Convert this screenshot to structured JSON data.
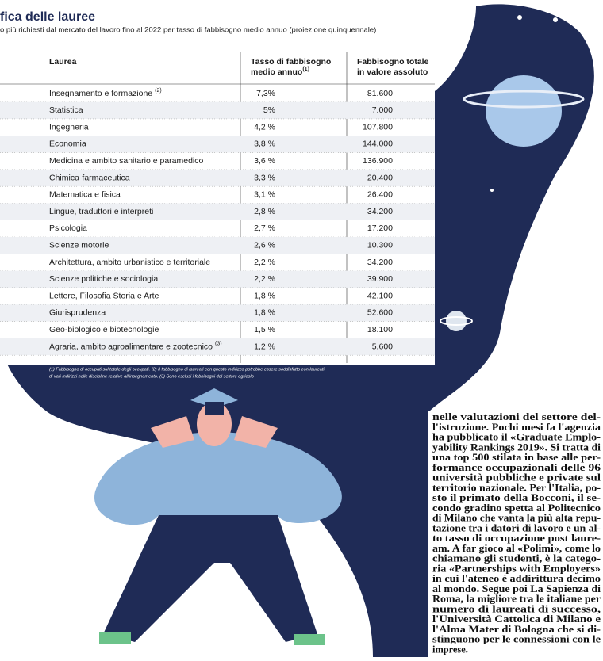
{
  "header": {
    "title": "fica delle lauree",
    "subtitle": "o più richiesti dal mercato del lavoro fino al 2022  per tasso di fabbisogno medio annuo (proiezione quinquennale)"
  },
  "table": {
    "columns": [
      {
        "label": "Laurea"
      },
      {
        "label": "Tasso di fabbisogno medio annuo",
        "note": "(1)"
      },
      {
        "label": "Fabbisogno totale in valore assoluto"
      }
    ],
    "rows": [
      [
        {
          "label": "Insegnamento e formazione",
          "note": "(2)"
        },
        "7,3%",
        "81.600"
      ],
      [
        {
          "label": "Statistica"
        },
        "5%",
        "7.000"
      ],
      [
        {
          "label": "Ingegneria"
        },
        "4,2 %",
        "107.800"
      ],
      [
        {
          "label": "Economia"
        },
        "3,8 %",
        "144.000"
      ],
      [
        {
          "label": "Medicina e ambito sanitario e paramedico"
        },
        "3,6 %",
        "136.900"
      ],
      [
        {
          "label": "Chimica-farmaceutica"
        },
        "3,3 %",
        "20.400"
      ],
      [
        {
          "label": "Matematica e fisica"
        },
        "3,1 %",
        "26.400"
      ],
      [
        {
          "label": "Lingue, traduttori e interpreti"
        },
        "2,8 %",
        "34.200"
      ],
      [
        {
          "label": "Psicologia"
        },
        "2,7 %",
        "17.200"
      ],
      [
        {
          "label": "Scienze motorie"
        },
        "2,6 %",
        "10.300"
      ],
      [
        {
          "label": "Architettura, ambito urbanistico e territoriale"
        },
        "2,2 %",
        "34.200"
      ],
      [
        {
          "label": "Scienze politiche e sociologia"
        },
        "2,2 %",
        "39.900"
      ],
      [
        {
          "label": "Lettere, Filosofia Storia e Arte"
        },
        "1,8 %",
        "42.100"
      ],
      [
        {
          "label": "Giurisprudenza"
        },
        "1,8 %",
        "52.600"
      ],
      [
        {
          "label": "Geo-biologico e biotecnologie"
        },
        "1,5 %",
        "18.100"
      ],
      [
        {
          "label": "Agraria, ambito agroalimentare e zootecnico",
          "note": "(3)"
        },
        "1,2 %",
        "5.600"
      ]
    ],
    "footnote": [
      "(1) Fabbisogno di occupati sul totale degli occupati. (2) Il fabbisogno di laureati con questo indirizzo potrebbe essere soddisfatto con laureati",
      "di vari indirizzi nelle discipline relative all'insegnamento. (3) Sono esclusi i fabbisogni del settore agricolo"
    ]
  },
  "article": {
    "lines": [
      "nelle valutazioni del settore del-",
      "l'istruzione. Pochi mesi fa l'agenzia",
      "ha pubblicato il «Graduate Emplo-",
      "yability Rankings 2019». Si tratta di",
      "una top 500 stilata in base alle per-",
      "formance occupazionali delle 96",
      "università pubbliche e private sul",
      "territorio nazionale. Per l'Italia, po-",
      "sto il primato della Bocconi, il se-",
      "condo gradino spetta al Politecnico",
      "di Milano che vanta la più alta repu-",
      "tazione tra i datori di lavoro e un al-",
      "to tasso di occupazione post laure-",
      "am. A far gioco al «Polimi», come lo",
      "chiamano gli studenti, è la catego-",
      "ria «Partnerships with Employers»",
      "in cui l'ateneo è addirittura decimo",
      "al mondo. Segue poi La Sapienza di",
      "Roma, la migliore tra le italiane per",
      "numero di laureati di successo,",
      "l'Università Cattolica di Milano e",
      "l'Alma Mater di Bologna che si di-",
      "stinguono per le connessioni con le",
      "imprese."
    ]
  }
}
